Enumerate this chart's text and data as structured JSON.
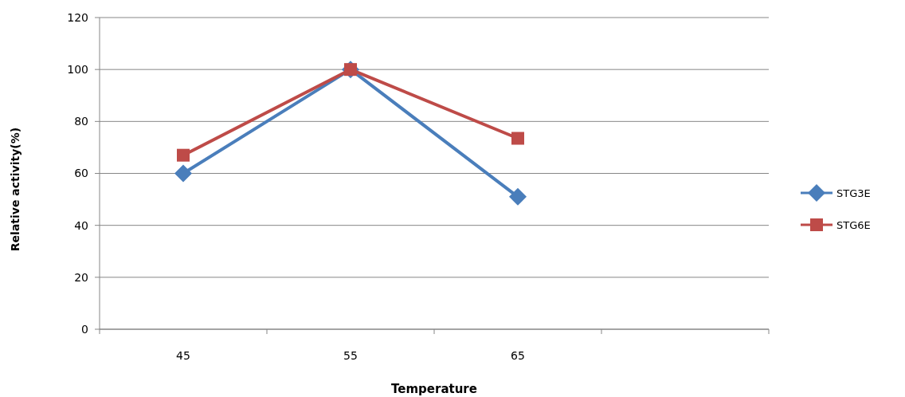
{
  "chart_data": {
    "type": "line",
    "xlabel": "Temperature",
    "ylabel": "Relative activity(%)",
    "categories": [
      "45",
      "55",
      "65",
      null
    ],
    "series": [
      {
        "name": "STG3E",
        "color": "#4a7ebb",
        "values": [
          60,
          100,
          51,
          null
        ],
        "marker": "diamond"
      },
      {
        "name": "STG6E",
        "color": "#be4b48",
        "values": [
          67,
          100,
          73.5,
          null
        ],
        "marker": "square"
      }
    ],
    "ylim": [
      0,
      120
    ],
    "yticks": [
      0,
      20,
      40,
      60,
      80,
      100,
      120
    ],
    "grid": "y",
    "legend": "right"
  }
}
